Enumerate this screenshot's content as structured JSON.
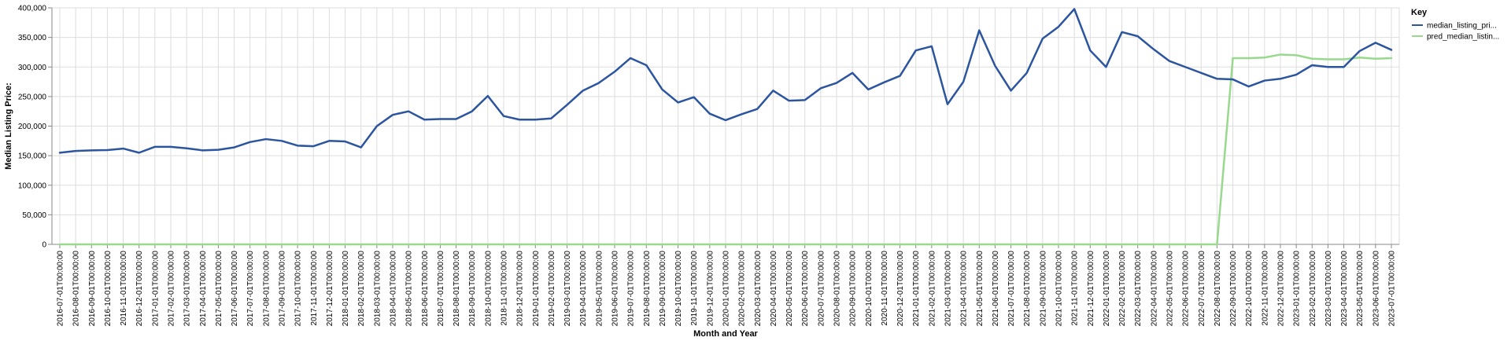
{
  "chart_data": {
    "type": "line",
    "xlabel": "Month and Year",
    "ylabel": "Median Listing Price:",
    "ylim": [
      0,
      400000
    ],
    "y_ticks": [
      "0",
      "50,000",
      "100,000",
      "150,000",
      "200,000",
      "250,000",
      "300,000",
      "350,000",
      "400,000"
    ],
    "grid": true,
    "legend_position": "top-right",
    "legend_title": "Key",
    "x": [
      "2016-07-01T00:00:00",
      "2016-08-01T00:00:00",
      "2016-09-01T00:00:00",
      "2016-10-01T00:00:00",
      "2016-11-01T00:00:00",
      "2016-12-01T00:00:00",
      "2017-01-01T00:00:00",
      "2017-02-01T00:00:00",
      "2017-03-01T00:00:00",
      "2017-04-01T00:00:00",
      "2017-05-01T00:00:00",
      "2017-06-01T00:00:00",
      "2017-07-01T00:00:00",
      "2017-08-01T00:00:00",
      "2017-09-01T00:00:00",
      "2017-10-01T00:00:00",
      "2017-11-01T00:00:00",
      "2017-12-01T00:00:00",
      "2018-01-01T00:00:00",
      "2018-02-01T00:00:00",
      "2018-03-01T00:00:00",
      "2018-04-01T00:00:00",
      "2018-05-01T00:00:00",
      "2018-06-01T00:00:00",
      "2018-07-01T00:00:00",
      "2018-08-01T00:00:00",
      "2018-09-01T00:00:00",
      "2018-10-01T00:00:00",
      "2018-11-01T00:00:00",
      "2018-12-01T00:00:00",
      "2019-01-01T00:00:00",
      "2019-02-01T00:00:00",
      "2019-03-01T00:00:00",
      "2019-04-01T00:00:00",
      "2019-05-01T00:00:00",
      "2019-06-01T00:00:00",
      "2019-07-01T00:00:00",
      "2019-08-01T00:00:00",
      "2019-09-01T00:00:00",
      "2019-10-01T00:00:00",
      "2019-11-01T00:00:00",
      "2019-12-01T00:00:00",
      "2020-01-01T00:00:00",
      "2020-02-01T00:00:00",
      "2020-03-01T00:00:00",
      "2020-04-01T00:00:00",
      "2020-05-01T00:00:00",
      "2020-06-01T00:00:00",
      "2020-07-01T00:00:00",
      "2020-08-01T00:00:00",
      "2020-09-01T00:00:00",
      "2020-10-01T00:00:00",
      "2020-11-01T00:00:00",
      "2020-12-01T00:00:00",
      "2021-01-01T00:00:00",
      "2021-02-01T00:00:00",
      "2021-03-01T00:00:00",
      "2021-04-01T00:00:00",
      "2021-05-01T00:00:00",
      "2021-06-01T00:00:00",
      "2021-07-01T00:00:00",
      "2021-08-01T00:00:00",
      "2021-09-01T00:00:00",
      "2021-10-01T00:00:00",
      "2021-11-01T00:00:00",
      "2021-12-01T00:00:00",
      "2022-01-01T00:00:00",
      "2022-02-01T00:00:00",
      "2022-03-01T00:00:00",
      "2022-04-01T00:00:00",
      "2022-05-01T00:00:00",
      "2022-06-01T00:00:00",
      "2022-07-01T00:00:00",
      "2022-08-01T00:00:00",
      "2022-09-01T00:00:00",
      "2022-10-01T00:00:00",
      "2022-11-01T00:00:00",
      "2022-12-01T00:00:00",
      "2023-01-01T00:00:00",
      "2023-02-01T00:00:00",
      "2023-03-01T00:00:00",
      "2023-04-01T00:00:00",
      "2023-05-01T00:00:00",
      "2023-06-01T00:00:00",
      "2023-07-01T00:00:00"
    ],
    "series": [
      {
        "name": "median_listing_pri...",
        "color": "#2c55a0",
        "values": [
          155000,
          158000,
          159000,
          159500,
          162000,
          155000,
          165000,
          165000,
          162500,
          159000,
          160000,
          164000,
          173000,
          178000,
          175000,
          167000,
          166000,
          175000,
          174000,
          164000,
          200000,
          219000,
          225000,
          211000,
          212000,
          212000,
          225000,
          251000,
          217000,
          211000,
          211000,
          213000,
          236000,
          260000,
          273000,
          292000,
          315000,
          303000,
          262000,
          240000,
          249000,
          221000,
          210000,
          220000,
          229000,
          260000,
          243000,
          244000,
          264000,
          273000,
          290000,
          262000,
          274000,
          285000,
          328000,
          335000,
          237000,
          275000,
          362000,
          302000,
          260000,
          290000,
          348000,
          368000,
          398000,
          328000,
          300000,
          359000,
          352000,
          330000,
          310000,
          300000,
          290000,
          280000,
          279000,
          267000,
          277000,
          280000,
          287000,
          303000,
          300000,
          300000,
          327000,
          341000,
          329000
        ]
      },
      {
        "name": "pred_median_listin...",
        "color": "#98d98e",
        "values": [
          0,
          0,
          0,
          0,
          0,
          0,
          0,
          0,
          0,
          0,
          0,
          0,
          0,
          0,
          0,
          0,
          0,
          0,
          0,
          0,
          0,
          0,
          0,
          0,
          0,
          0,
          0,
          0,
          0,
          0,
          0,
          0,
          0,
          0,
          0,
          0,
          0,
          0,
          0,
          0,
          0,
          0,
          0,
          0,
          0,
          0,
          0,
          0,
          0,
          0,
          0,
          0,
          0,
          0,
          0,
          0,
          0,
          0,
          0,
          0,
          0,
          0,
          0,
          0,
          0,
          0,
          0,
          0,
          0,
          0,
          0,
          0,
          0,
          0,
          315000,
          315000,
          316000,
          321000,
          320000,
          314000,
          313000,
          313000,
          316000,
          314000,
          315000
        ]
      }
    ]
  }
}
